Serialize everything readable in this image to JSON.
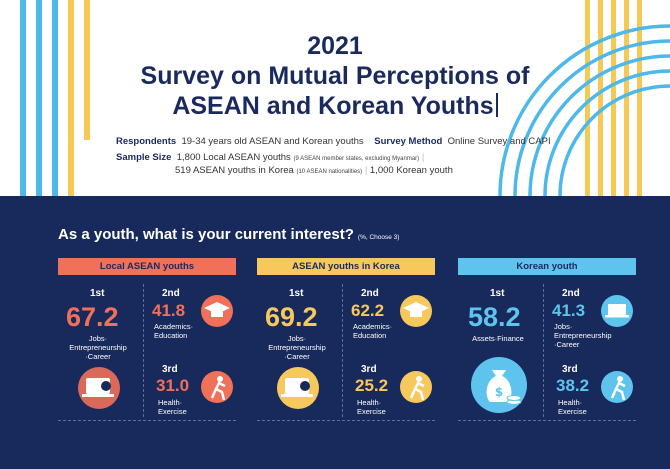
{
  "header": {
    "year": "2021",
    "title_line1": "Survey on Mutual Perceptions of",
    "title_line2": "ASEAN and Korean Youths",
    "respondents_label": "Respondents",
    "respondents_value": "19-34 years old ASEAN and Korean youths",
    "method_label": "Survey Method",
    "method_value": "Online Survey and CAPI",
    "sample_label": "Sample Size",
    "sample_line1": "1,800 Local ASEAN youths",
    "sample_line1_note": "(9 ASEAN member states, excluding Myanmar)",
    "sample_line2": "519 ASEAN youths in Korea",
    "sample_line2_note": "(10 ASEAN nationalities)",
    "sample_line3": "1,000 Korean youth"
  },
  "question": {
    "text": "As a youth, what is your current interest?",
    "note": "(%, Choose 3)"
  },
  "colors": {
    "navy": "#172a5b",
    "coral": "#f0705a",
    "yellow": "#f7c85c",
    "sky": "#5ec4ee"
  },
  "panels": [
    {
      "header": "Local ASEAN youths",
      "first_rank": "1st",
      "first_value": "67.2",
      "first_label": [
        "Jobs·",
        "Entrepreneurship",
        "·Career"
      ],
      "first_icon": "laptop-work-icon",
      "second_rank": "2nd",
      "second_value": "41.8",
      "second_label": [
        "Academics·",
        "Education"
      ],
      "second_icon": "graduation-cap-icon",
      "third_rank": "3rd",
      "third_value": "31.0",
      "third_label": [
        "Health·",
        "Exercise"
      ],
      "third_icon": "runner-icon"
    },
    {
      "header": "ASEAN youths in Korea",
      "first_rank": "1st",
      "first_value": "69.2",
      "first_label": [
        "Jobs·",
        "Entrepreneurship",
        "·Career"
      ],
      "first_icon": "laptop-work-icon",
      "second_rank": "2nd",
      "second_value": "62.2",
      "second_label": [
        "Academics·",
        "Education"
      ],
      "second_icon": "graduation-cap-icon",
      "third_rank": "3rd",
      "third_value": "25.2",
      "third_label": [
        "Health·",
        "Exercise"
      ],
      "third_icon": "runner-icon"
    },
    {
      "header": "Korean youth",
      "first_rank": "1st",
      "first_value": "58.2",
      "first_label": [
        "Assets·Finance"
      ],
      "first_icon": "money-bag-icon",
      "second_rank": "2nd",
      "second_value": "41.3",
      "second_label": [
        "Jobs·",
        "Entrepreneurship",
        "·Career"
      ],
      "second_icon": "laptop-work-icon",
      "third_rank": "3rd",
      "third_value": "38.2",
      "third_label": [
        "Health·",
        "Exercise"
      ],
      "third_icon": "runner-icon"
    }
  ]
}
